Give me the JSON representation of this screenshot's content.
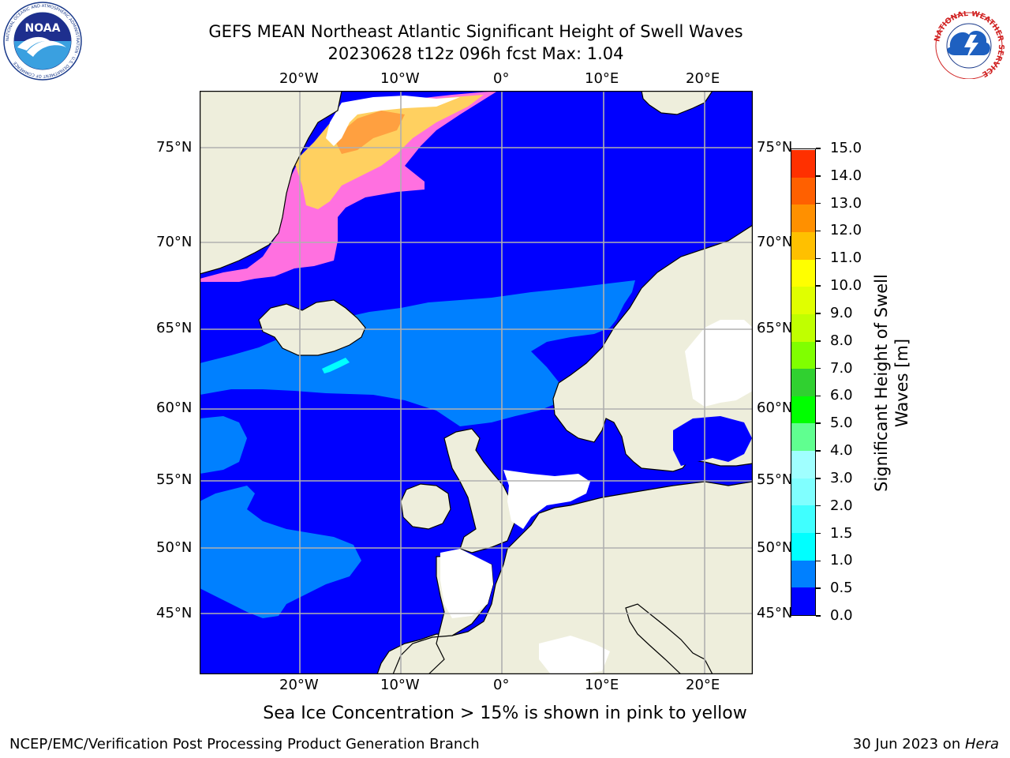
{
  "header": {
    "title_line1": "GEFS MEAN Northeast Atlantic Significant Height of Swell Waves",
    "title_line2": "20230628 t12z 096h fcst   Max: 1.04",
    "noaa_logo_text": "NOAA",
    "noaa_ring_text": "NATIONAL OCEANIC AND ATMOSPHERIC ADMINISTRATION · U.S. DEPARTMENT OF COMMERCE",
    "nws_ring_text": "NATIONAL WEATHER SERVICE"
  },
  "map": {
    "lon_labels": [
      "20°W",
      "10°W",
      "0°",
      "10°E",
      "20°E"
    ],
    "lat_labels": [
      "75°N",
      "70°N",
      "65°N",
      "60°N",
      "55°N",
      "50°N",
      "45°N"
    ],
    "projection": "polar stereographic",
    "grid": true,
    "colors": {
      "ocean_low": "#0000ff",
      "ocean_mid": "#0080ff",
      "ocean_cyan": "#00ffff",
      "land": "#eeeedc",
      "ice_pink": "#ff60e0",
      "ice_yellow": "#ffe060",
      "no_data": "#ffffff",
      "coast": "#000000",
      "gridline": "#b0b0b0"
    }
  },
  "colorbar": {
    "label_line1": "Significant Height of Swell",
    "label_line2": "Waves [m]",
    "ticks": [
      "0.0",
      "0.5",
      "1.0",
      "1.5",
      "2.0",
      "3.0",
      "4.0",
      "5.0",
      "6.0",
      "7.0",
      "8.0",
      "9.0",
      "10.0",
      "11.0",
      "12.0",
      "13.0",
      "14.0",
      "15.0"
    ],
    "colors": [
      "#0000ff",
      "#0080ff",
      "#00ffff",
      "#40ffff",
      "#80ffff",
      "#a0ffff",
      "#60ff90",
      "#00ff00",
      "#30d030",
      "#80ff00",
      "#c0ff00",
      "#e0ff00",
      "#ffff00",
      "#ffc000",
      "#ff9000",
      "#ff6000",
      "#ff3000",
      "#ff0000"
    ]
  },
  "note": "Sea Ice Concentration > 15% is shown in pink to yellow",
  "footer": {
    "left": "NCEP/EMC/Verification Post Processing Product Generation Branch",
    "right_prefix": "30 Jun 2023 on ",
    "right_machine": "Hera"
  }
}
